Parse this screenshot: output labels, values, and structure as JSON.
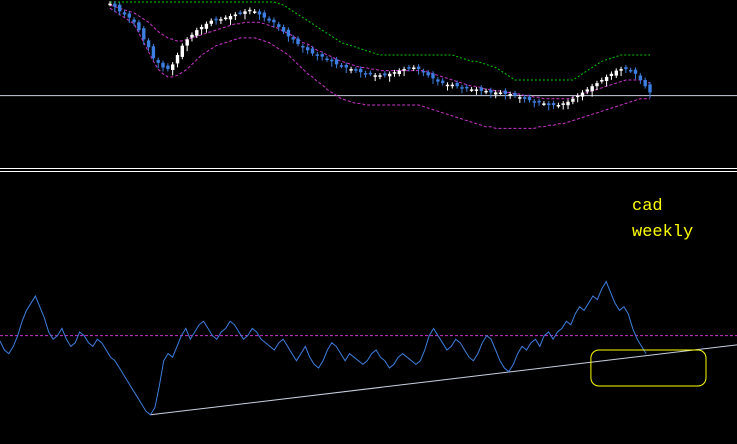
{
  "colors": {
    "background": "#000000",
    "bull_candle": "#ffffff",
    "bear_candle": "#3d7fe0",
    "band_upper": "#00cc00",
    "band_middle": "#cc33cc",
    "band_lower": "#cc33cc",
    "indicator_line": "#3d7fe0",
    "indicator_level": "#cc33cc",
    "price_level": "#c8d0e0",
    "trendline": "#c8d0e0",
    "separator": "#ffffff",
    "annotation": "#ffff00",
    "highlight_box": "#ffff00"
  },
  "annotation": {
    "line1": "cad",
    "line2": "weekly"
  },
  "chart_data": [
    {
      "type": "candlestick",
      "series_name": "",
      "title": "",
      "x_unit": "bar index",
      "ylim": [
        0,
        100
      ],
      "closes": [
        99,
        97,
        94,
        92,
        90,
        87,
        82,
        76,
        71,
        64,
        61,
        58,
        57,
        60,
        66,
        72,
        76,
        79,
        82,
        84,
        86,
        88,
        89,
        89,
        90,
        91,
        92,
        93,
        94,
        95,
        94,
        92,
        90,
        88,
        87,
        84,
        81,
        78,
        76,
        73,
        71,
        69,
        67,
        66,
        65,
        63,
        62,
        60,
        59,
        58,
        57,
        56,
        55,
        54,
        54,
        53,
        53,
        53,
        54,
        55,
        56,
        57,
        58,
        58,
        57,
        55,
        53,
        51,
        49,
        48,
        47,
        47,
        46,
        45,
        45,
        44,
        44,
        43,
        43,
        42,
        42,
        42,
        41,
        41,
        40,
        39,
        38,
        37,
        36,
        36,
        35,
        34,
        34,
        34,
        35,
        36,
        38,
        40,
        42,
        44,
        46,
        48,
        50,
        52,
        54,
        56,
        57,
        57,
        56,
        54,
        50,
        46,
        42
      ],
      "bands": {
        "upper": [
          100,
          100,
          100,
          100,
          100,
          100,
          100,
          100,
          100,
          100,
          100,
          100,
          100,
          100,
          100,
          100,
          100,
          100,
          100,
          100,
          100,
          100,
          100,
          100,
          100,
          100,
          100,
          100,
          100,
          100,
          100,
          100,
          100,
          100,
          100,
          99,
          98,
          96,
          94,
          92,
          90,
          88,
          86,
          84,
          82,
          80,
          78,
          76,
          74,
          73,
          72,
          71,
          70,
          69,
          68,
          67,
          66,
          66,
          66,
          66,
          66,
          66,
          66,
          66,
          66,
          66,
          66,
          66,
          66,
          66,
          66,
          66,
          65,
          64,
          63,
          62,
          62,
          61,
          60,
          59,
          58,
          56,
          54,
          52,
          50,
          50,
          50,
          50,
          50,
          50,
          50,
          50,
          50,
          50,
          50,
          50,
          50,
          52,
          54,
          56,
          58,
          60,
          62,
          63,
          64,
          65,
          66,
          66,
          66,
          66,
          66,
          66,
          66
        ],
        "middle": [
          98,
          97,
          96,
          95,
          94,
          93,
          91,
          89,
          87,
          84,
          81,
          79,
          77,
          76,
          75,
          75,
          76,
          77,
          78,
          79,
          80,
          81,
          82,
          83,
          84,
          85,
          86,
          86,
          87,
          87,
          87,
          87,
          86,
          85,
          84,
          83,
          81,
          80,
          78,
          76,
          74,
          73,
          71,
          69,
          68,
          66,
          65,
          63,
          62,
          61,
          60,
          59,
          58,
          58,
          57,
          57,
          56,
          56,
          56,
          56,
          56,
          56,
          56,
          56,
          56,
          56,
          55,
          54,
          53,
          52,
          51,
          50,
          49,
          48,
          47,
          46,
          46,
          45,
          44,
          44,
          43,
          43,
          42,
          42,
          41,
          41,
          40,
          40,
          39,
          39,
          38,
          38,
          38,
          38,
          38,
          38,
          39,
          40,
          41,
          42,
          43,
          44,
          45,
          46,
          47,
          48,
          49,
          50,
          50,
          50,
          50,
          49,
          48
        ],
        "lower": [
          96,
          94,
          92,
          90,
          88,
          86,
          80,
          74,
          68,
          62,
          57,
          54,
          52,
          52,
          53,
          55,
          57,
          60,
          63,
          66,
          68,
          70,
          72,
          73,
          74,
          75,
          76,
          77,
          77,
          77,
          77,
          76,
          75,
          74,
          72,
          70,
          68,
          66,
          63,
          60,
          57,
          54,
          52,
          49,
          47,
          44,
          42,
          40,
          38,
          37,
          36,
          35,
          35,
          34,
          34,
          34,
          34,
          34,
          34,
          34,
          34,
          34,
          34,
          34,
          34,
          33,
          32,
          31,
          30,
          29,
          28,
          27,
          26,
          25,
          24,
          23,
          22,
          21,
          20,
          20,
          19,
          19,
          19,
          19,
          19,
          19,
          19,
          19,
          19,
          20,
          20,
          21,
          21,
          22,
          22,
          23,
          24,
          25,
          26,
          27,
          28,
          29,
          30,
          31,
          32,
          33,
          34,
          35,
          36,
          37,
          38,
          38,
          38
        ]
      },
      "horizontal_level": 40
    },
    {
      "type": "line",
      "series_name": "",
      "title": "",
      "ylim": [
        0,
        100
      ],
      "values": [
        55,
        50,
        48,
        52,
        58,
        66,
        72,
        76,
        80,
        74,
        68,
        60,
        56,
        58,
        62,
        56,
        52,
        54,
        60,
        58,
        54,
        52,
        56,
        54,
        50,
        46,
        44,
        40,
        36,
        32,
        28,
        24,
        20,
        16,
        14,
        18,
        30,
        44,
        48,
        46,
        52,
        58,
        62,
        56,
        60,
        64,
        66,
        62,
        58,
        56,
        60,
        62,
        66,
        64,
        60,
        56,
        58,
        62,
        60,
        56,
        54,
        52,
        50,
        54,
        56,
        52,
        48,
        44,
        48,
        52,
        46,
        42,
        40,
        44,
        50,
        54,
        52,
        48,
        44,
        48,
        46,
        44,
        42,
        44,
        48,
        50,
        46,
        44,
        40,
        42,
        46,
        48,
        46,
        44,
        42,
        44,
        50,
        58,
        62,
        58,
        54,
        50,
        52,
        56,
        54,
        50,
        46,
        44,
        48,
        54,
        58,
        56,
        50,
        44,
        40,
        38,
        42,
        48,
        52,
        50,
        54,
        56,
        52,
        58,
        60,
        56,
        60,
        62,
        66,
        64,
        70,
        74,
        72,
        76,
        80,
        78,
        84,
        88,
        82,
        76,
        72,
        74,
        70,
        62,
        56,
        52,
        48
      ],
      "horizontal_level": 58,
      "trendline": {
        "from": [
          34,
          14
        ],
        "to": [
          150,
          48
        ]
      },
      "highlight_region": {
        "x_range": [
          134,
          150
        ],
        "y_range": [
          30,
          50
        ]
      }
    }
  ]
}
